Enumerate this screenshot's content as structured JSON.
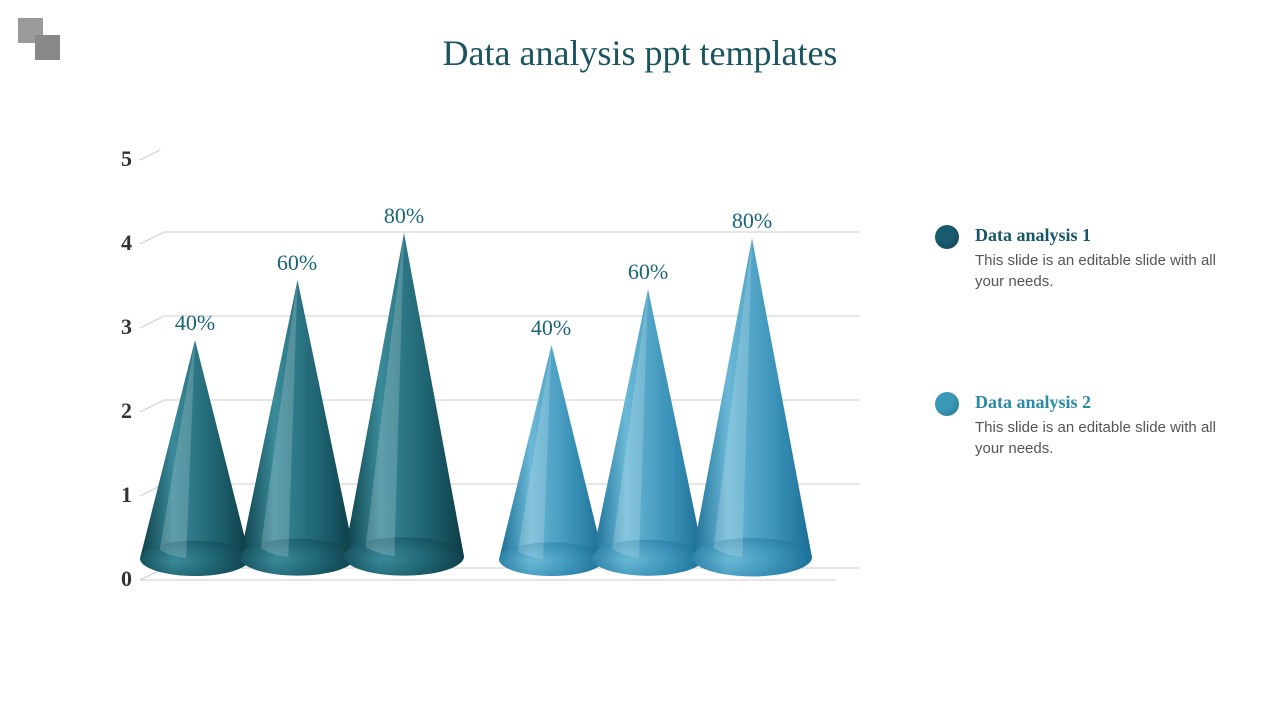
{
  "title": "Data analysis ppt templates",
  "deco": {
    "sq1_color": "#9a9a9a",
    "sq2_color": "#888888"
  },
  "chart": {
    "type": "cone-bar",
    "grid": {
      "line_color": "#cccccc",
      "back_depth_x": 24,
      "back_depth_y": 12
    },
    "y_axis": {
      "min": 0,
      "max": 5,
      "step": 1,
      "tick_fontsize": 22,
      "tick_color": "#333333",
      "ticks": [
        "0",
        "1",
        "2",
        "3",
        "4",
        "5"
      ]
    },
    "label_color": "#1a6576",
    "label_fontsize": 22,
    "series": [
      {
        "id": "s1",
        "light": "#3a8a99",
        "mid": "#1e6270",
        "dark": "#0c3d47",
        "cones": [
          {
            "label": "40%",
            "height_val": 2.6,
            "base_w": 110
          },
          {
            "label": "60%",
            "height_val": 3.3,
            "base_w": 115
          },
          {
            "label": "80%",
            "height_val": 3.85,
            "base_w": 120
          }
        ]
      },
      {
        "id": "s2",
        "light": "#6bb8d6",
        "mid": "#3a92b8",
        "dark": "#1a6d94",
        "cones": [
          {
            "label": "40%",
            "height_val": 2.55,
            "base_w": 105
          },
          {
            "label": "60%",
            "height_val": 3.2,
            "base_w": 112
          },
          {
            "label": "80%",
            "height_val": 3.8,
            "base_w": 120
          }
        ]
      }
    ]
  },
  "legend": [
    {
      "title": "Data analysis 1",
      "title_color": "#17556a",
      "dot_color": "#1a5a6e",
      "desc": "This slide is an editable slide with all your needs."
    },
    {
      "title": "Data analysis 2",
      "title_color": "#2b8aa8",
      "dot_color": "#3a9ab8",
      "desc": "This slide is an editable slide with all your needs."
    }
  ]
}
